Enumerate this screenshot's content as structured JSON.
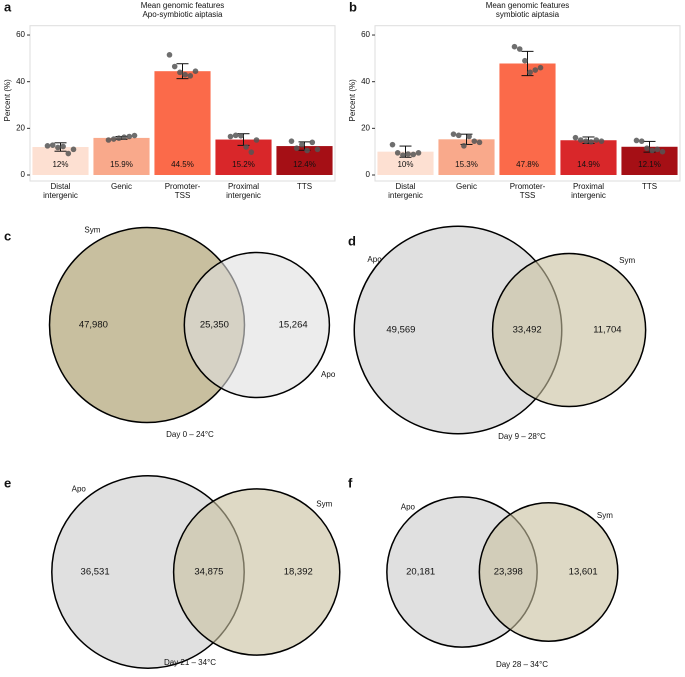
{
  "chart_data": [
    {
      "type": "bar",
      "panel": "a",
      "title": [
        "Mean genomic features",
        "Apo-symbiotic aiptasia"
      ],
      "y_label": "Percent (%)",
      "categories": [
        [
          "Distal",
          "intergenic"
        ],
        [
          "Genic"
        ],
        [
          "Promoter-",
          "TSS"
        ],
        [
          "Proximal",
          "intergenic"
        ],
        [
          "TTS"
        ]
      ],
      "values": [
        12,
        15.9,
        44.5,
        15.2,
        12.4
      ],
      "value_labels": [
        "12%",
        "15.9%",
        "44.5%",
        "15.2%",
        "12.4%"
      ],
      "errors": [
        1.8,
        0.6,
        3.2,
        2.5,
        1.8
      ],
      "points": [
        [
          12.5,
          12.8,
          11.8,
          12.2,
          9.2,
          11.0
        ],
        [
          15.0,
          15.4,
          15.8,
          16.2,
          16.5,
          16.9
        ],
        [
          51.5,
          46.5,
          44.0,
          43.0,
          42.5,
          44.5
        ],
        [
          16.5,
          17.0,
          16.8,
          12.0,
          9.8,
          15.0
        ],
        [
          14.5,
          11.5,
          13.0,
          10.5,
          14.0,
          11.0
        ]
      ],
      "colors": [
        "#fde0d2",
        "#f9a98b",
        "#fb6a4a",
        "#d9272a",
        "#a50f15"
      ],
      "ylim": [
        0,
        64
      ],
      "yticks": [
        0,
        20,
        40,
        60
      ]
    },
    {
      "type": "bar",
      "panel": "b",
      "title": [
        "Mean genomic features",
        "symbiotic aiptasia"
      ],
      "y_label": "Percent (%)",
      "categories": [
        [
          "Distal",
          "intergenic"
        ],
        [
          "Genic"
        ],
        [
          "Promoter-",
          "TSS"
        ],
        [
          "Proximal",
          "intergenic"
        ],
        [
          "TTS"
        ]
      ],
      "values": [
        10,
        15.3,
        47.8,
        14.9,
        12.1
      ],
      "value_labels": [
        "10%",
        "15.3%",
        "47.8%",
        "14.9%",
        "12.1%"
      ],
      "errors": [
        2.4,
        2.2,
        5.2,
        1.4,
        2.3
      ],
      "points": [
        [
          13.0,
          9.5,
          8.5,
          9.0,
          8.8,
          9.5
        ],
        [
          17.5,
          17.0,
          12.5,
          16.5,
          14.5,
          14.0
        ],
        [
          55.0,
          54.0,
          49.0,
          44.0,
          45.0,
          46.0
        ],
        [
          16.0,
          15.0,
          14.5,
          14.2,
          15.0,
          14.5
        ],
        [
          14.8,
          14.5,
          11.5,
          10.5,
          11.0,
          10.0
        ]
      ],
      "colors": [
        "#fde0d2",
        "#f9a98b",
        "#fb6a4a",
        "#d9272a",
        "#a50f15"
      ],
      "ylim": [
        0,
        64
      ],
      "yticks": [
        0,
        20,
        40,
        60
      ]
    },
    {
      "type": "venn",
      "panel": "c",
      "caption": "Day 0 – 24°C",
      "sets": [
        {
          "name": "Sym",
          "color": "#c8bf9f"
        },
        {
          "name": "Apo",
          "color": "#e0e0e0"
        }
      ],
      "values": [
        47980,
        25350,
        15264
      ],
      "value_labels": [
        "47,980",
        "25,350",
        "15,264"
      ]
    },
    {
      "type": "venn",
      "panel": "d",
      "caption": "Day 9 – 28°C",
      "sets": [
        {
          "name": "Apo",
          "color": "#e0e0e0"
        },
        {
          "name": "Sym",
          "color": "#c8bf9f"
        }
      ],
      "values": [
        49569,
        33492,
        11704
      ],
      "value_labels": [
        "49,569",
        "33,492",
        "11,704"
      ]
    },
    {
      "type": "venn",
      "panel": "e",
      "caption": "Day 21 – 34°C",
      "sets": [
        {
          "name": "Apo",
          "color": "#e0e0e0"
        },
        {
          "name": "Sym",
          "color": "#c8bf9f"
        }
      ],
      "values": [
        36531,
        34875,
        18392
      ],
      "value_labels": [
        "36,531",
        "34,875",
        "18,392"
      ]
    },
    {
      "type": "venn",
      "panel": "f",
      "caption": "Day 28 – 34°C",
      "sets": [
        {
          "name": "Apo",
          "color": "#e0e0e0"
        },
        {
          "name": "Sym",
          "color": "#c8bf9f"
        }
      ],
      "values": [
        20181,
        23398,
        13601
      ],
      "value_labels": [
        "20,181",
        "23,398",
        "13,601"
      ]
    }
  ]
}
